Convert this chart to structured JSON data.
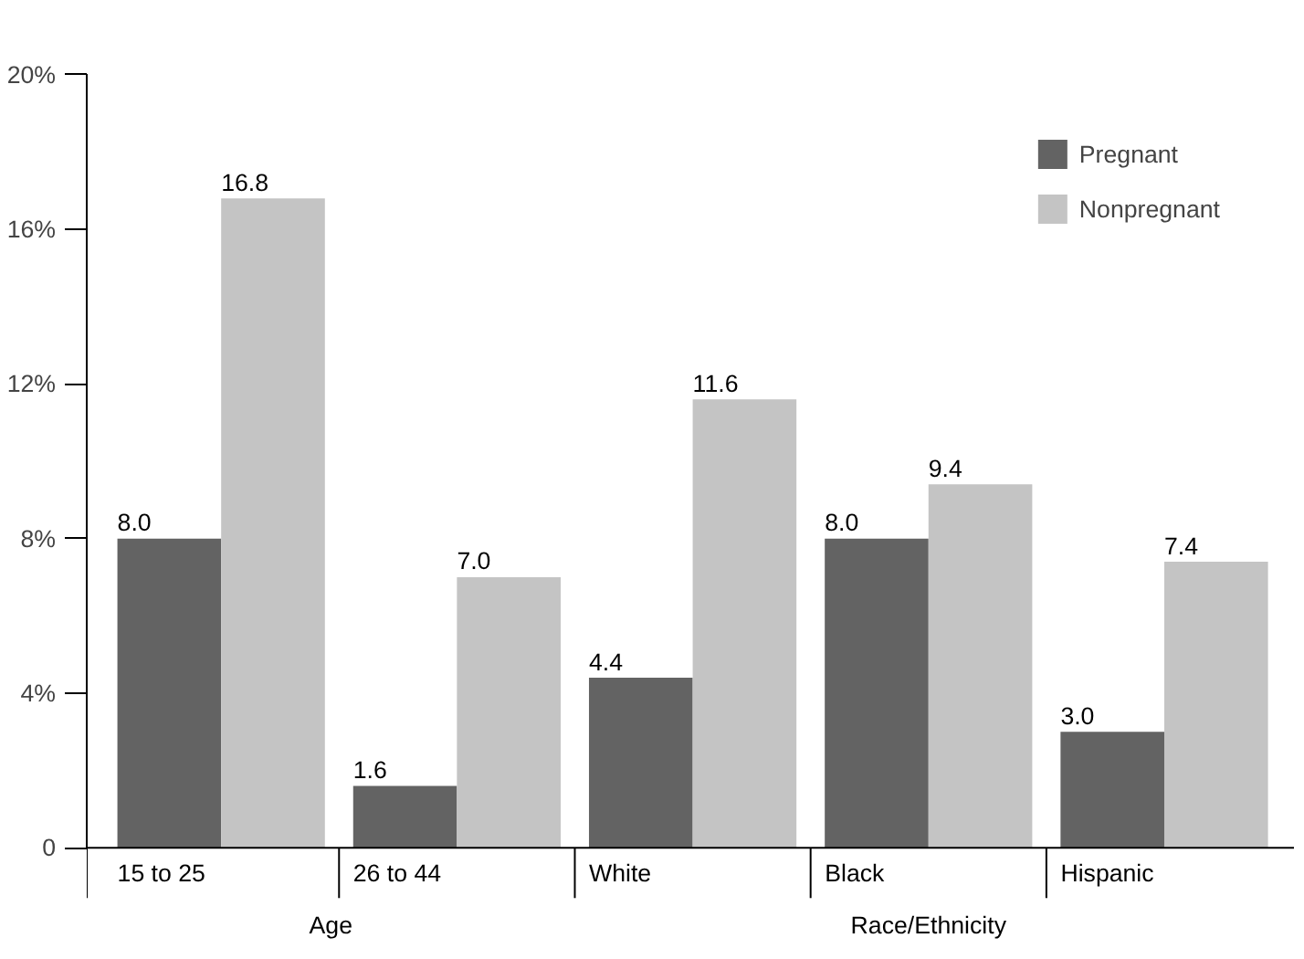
{
  "chart_data": {
    "type": "bar",
    "categories": [
      "15 to 25",
      "26 to 44",
      "White",
      "Black",
      "Hispanic"
    ],
    "series": [
      {
        "name": "Pregnant",
        "color": "#636363",
        "values": [
          8.0,
          1.6,
          4.4,
          8.0,
          3.0
        ],
        "value_labels": [
          "8.0",
          "1.6",
          "4.4",
          "8.0",
          "3.0"
        ]
      },
      {
        "name": "Nonpregnant",
        "color": "#c4c4c4",
        "values": [
          16.8,
          7.0,
          11.6,
          9.4,
          7.4
        ],
        "value_labels": [
          "16.8",
          "7.0",
          "11.6",
          "9.4",
          "7.4"
        ]
      }
    ],
    "ylim": [
      0,
      20
    ],
    "yticks": [
      0,
      {
        "value": 4,
        "label": "4%"
      },
      {
        "value": 8,
        "label": "8%"
      },
      {
        "value": 12,
        "label": "12%"
      },
      {
        "value": 16,
        "label": "16%"
      },
      {
        "value": 20,
        "label": "20%"
      }
    ],
    "annotations": [
      "Age",
      "Race/Ethnicity"
    ],
    "legend": "top right",
    "grid": false
  }
}
